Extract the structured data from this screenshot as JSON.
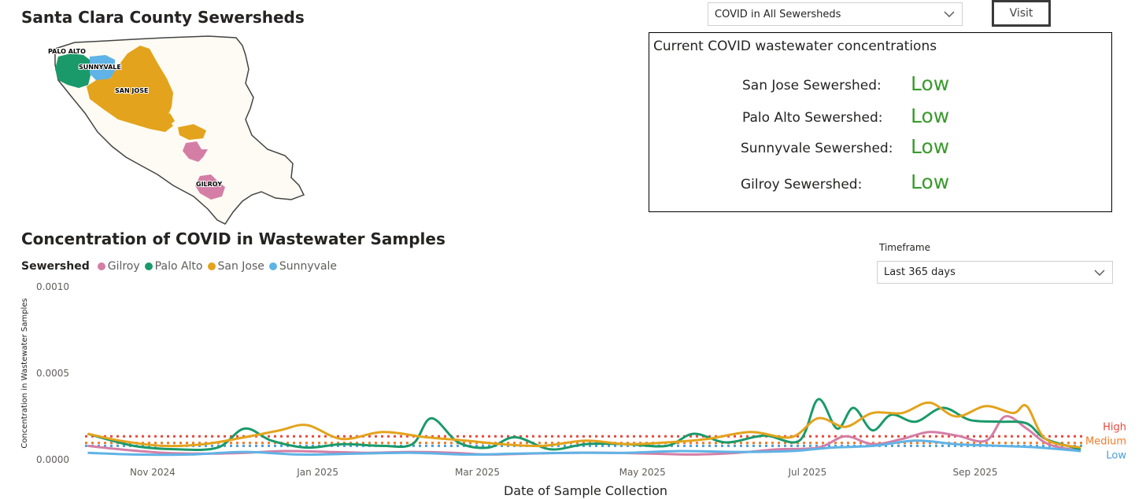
{
  "map": {
    "title": "Santa Clara County Sewersheds",
    "labels": {
      "palo_alto": "PALO ALTO",
      "sunnyvale": "SUNNYVALE",
      "san_jose": "SAN JOSE",
      "gilroy": "GILROY"
    },
    "colors": {
      "county": "#fdfbf3",
      "palo_alto": "#1a9a6a",
      "sunnyvale": "#5fb3e6",
      "san_jose": "#e3a31c",
      "gilroy": "#d47ea6"
    }
  },
  "filter": {
    "selected": "COVID in All Sewersheds"
  },
  "visit": {
    "label": "Visit"
  },
  "current": {
    "title": "Current COVID wastewater concentrations",
    "rows": [
      {
        "label": "San Jose Sewershed:",
        "value": "Low"
      },
      {
        "label": "Palo Alto Sewershed:",
        "value": "Low"
      },
      {
        "label": "Sunnyvale Sewershed:",
        "value": "Low"
      },
      {
        "label": "Gilroy Sewershed:",
        "value": "Low"
      }
    ],
    "value_color": "#3a9a2e"
  },
  "timeframe": {
    "label": "Timeframe",
    "selected": "Last 365 days"
  },
  "chart_data": {
    "type": "line",
    "title": "Concentration of COVID in Wastewater Samples",
    "xlabel": "Date of Sample Collection",
    "ylabel": "Concentration in Wastewater Samples",
    "ylim": [
      0,
      0.001
    ],
    "yticks": [
      "0.0000",
      "0.0005",
      "0.0010"
    ],
    "xlim": [
      "2024-10-07",
      "2025-10-12"
    ],
    "xticks": [
      {
        "date": "2024-11-01",
        "label": "Nov 2024"
      },
      {
        "date": "2025-01-01",
        "label": "Jan 2025"
      },
      {
        "date": "2025-03-01",
        "label": "Mar 2025"
      },
      {
        "date": "2025-05-01",
        "label": "May 2025"
      },
      {
        "date": "2025-07-01",
        "label": "Jul 2025"
      },
      {
        "date": "2025-09-01",
        "label": "Sep 2025"
      }
    ],
    "legend_title": "Sewershed",
    "legend_position": "top-left",
    "grid": false,
    "thresholds": [
      {
        "name": "High",
        "value": 0.000135,
        "color": "#e84a3c"
      },
      {
        "name": "Medium",
        "value": 9.7e-05,
        "color": "#f07d2a"
      },
      {
        "name": "Low",
        "value": 8e-05,
        "color": "#4a9fd8"
      }
    ],
    "series": [
      {
        "name": "Gilroy",
        "color": "#d47ea6",
        "points": [
          [
            "2024-10-08",
            8e-05
          ],
          [
            "2024-10-20",
            6e-05
          ],
          [
            "2024-11-05",
            4e-05
          ],
          [
            "2024-11-20",
            3.5e-05
          ],
          [
            "2024-12-05",
            4e-05
          ],
          [
            "2024-12-20",
            5e-05
          ],
          [
            "2025-01-05",
            4.5e-05
          ],
          [
            "2025-01-20",
            4e-05
          ],
          [
            "2025-02-05",
            4.5e-05
          ],
          [
            "2025-02-20",
            4e-05
          ],
          [
            "2025-03-05",
            3e-05
          ],
          [
            "2025-03-20",
            3.5e-05
          ],
          [
            "2025-04-05",
            4e-05
          ],
          [
            "2025-04-20",
            4e-05
          ],
          [
            "2025-05-05",
            3.5e-05
          ],
          [
            "2025-05-20",
            3e-05
          ],
          [
            "2025-06-05",
            4e-05
          ],
          [
            "2025-06-20",
            6e-05
          ],
          [
            "2025-07-05",
            7e-05
          ],
          [
            "2025-07-15",
            0.000135
          ],
          [
            "2025-07-25",
            9e-05
          ],
          [
            "2025-08-05",
            0.00012
          ],
          [
            "2025-08-15",
            0.00016
          ],
          [
            "2025-08-25",
            0.00014
          ],
          [
            "2025-09-05",
            0.00011
          ],
          [
            "2025-09-12",
            0.00025
          ],
          [
            "2025-09-20",
            0.00018
          ],
          [
            "2025-09-28",
            9e-05
          ],
          [
            "2025-10-10",
            5e-05
          ]
        ]
      },
      {
        "name": "Palo Alto",
        "color": "#1a9a6a",
        "points": [
          [
            "2024-10-08",
            0.00015
          ],
          [
            "2024-10-25",
            8e-05
          ],
          [
            "2024-11-10",
            6e-05
          ],
          [
            "2024-11-25",
            7e-05
          ],
          [
            "2024-12-05",
            0.00018
          ],
          [
            "2024-12-15",
            0.00011
          ],
          [
            "2024-12-28",
            7e-05
          ],
          [
            "2025-01-10",
            9e-05
          ],
          [
            "2025-01-25",
            8e-05
          ],
          [
            "2025-02-05",
            9e-05
          ],
          [
            "2025-02-12",
            0.00024
          ],
          [
            "2025-02-22",
            0.0001
          ],
          [
            "2025-03-05",
            7e-05
          ],
          [
            "2025-03-15",
            0.00013
          ],
          [
            "2025-03-28",
            6e-05
          ],
          [
            "2025-04-10",
            9e-05
          ],
          [
            "2025-04-25",
            9e-05
          ],
          [
            "2025-05-10",
            8e-05
          ],
          [
            "2025-05-20",
            0.00015
          ],
          [
            "2025-06-01",
            0.0001
          ],
          [
            "2025-06-15",
            0.00014
          ],
          [
            "2025-06-28",
            0.00011
          ],
          [
            "2025-07-05",
            0.00035
          ],
          [
            "2025-07-12",
            0.00018
          ],
          [
            "2025-07-18",
            0.0003
          ],
          [
            "2025-07-25",
            0.00017
          ],
          [
            "2025-08-01",
            0.00026
          ],
          [
            "2025-08-10",
            0.00022
          ],
          [
            "2025-08-20",
            0.0003
          ],
          [
            "2025-08-30",
            0.00023
          ],
          [
            "2025-09-10",
            0.00022
          ],
          [
            "2025-09-20",
            0.00021
          ],
          [
            "2025-09-27",
            0.00012
          ],
          [
            "2025-10-10",
            6e-05
          ]
        ]
      },
      {
        "name": "San Jose",
        "color": "#e3a31c",
        "points": [
          [
            "2024-10-08",
            0.00015
          ],
          [
            "2024-10-20",
            0.00011
          ],
          [
            "2024-11-05",
            8e-05
          ],
          [
            "2024-11-20",
            9e-05
          ],
          [
            "2024-12-05",
            0.00013
          ],
          [
            "2024-12-18",
            0.00017
          ],
          [
            "2024-12-28",
            0.0002
          ],
          [
            "2025-01-10",
            0.00012
          ],
          [
            "2025-01-25",
            0.00016
          ],
          [
            "2025-02-10",
            0.00013
          ],
          [
            "2025-02-25",
            0.00011
          ],
          [
            "2025-03-10",
            9e-05
          ],
          [
            "2025-03-25",
            8e-05
          ],
          [
            "2025-04-10",
            0.00011
          ],
          [
            "2025-04-25",
            9e-05
          ],
          [
            "2025-05-10",
            0.0001
          ],
          [
            "2025-05-25",
            0.00012
          ],
          [
            "2025-06-10",
            0.00016
          ],
          [
            "2025-06-25",
            0.00013
          ],
          [
            "2025-07-05",
            0.00024
          ],
          [
            "2025-07-15",
            0.00019
          ],
          [
            "2025-07-25",
            0.00027
          ],
          [
            "2025-08-05",
            0.00027
          ],
          [
            "2025-08-15",
            0.00033
          ],
          [
            "2025-08-25",
            0.00025
          ],
          [
            "2025-09-05",
            0.00031
          ],
          [
            "2025-09-15",
            0.00027
          ],
          [
            "2025-09-20",
            0.00031
          ],
          [
            "2025-09-27",
            0.00012
          ],
          [
            "2025-10-10",
            7e-05
          ]
        ]
      },
      {
        "name": "Sunnyvale",
        "color": "#5fb3e6",
        "points": [
          [
            "2024-10-08",
            4e-05
          ],
          [
            "2024-10-25",
            3e-05
          ],
          [
            "2024-11-15",
            3e-05
          ],
          [
            "2024-12-05",
            4.5e-05
          ],
          [
            "2024-12-25",
            3e-05
          ],
          [
            "2025-01-15",
            3.5e-05
          ],
          [
            "2025-02-05",
            4e-05
          ],
          [
            "2025-02-25",
            3e-05
          ],
          [
            "2025-03-15",
            3.5e-05
          ],
          [
            "2025-04-05",
            4e-05
          ],
          [
            "2025-04-25",
            4e-05
          ],
          [
            "2025-05-15",
            5e-05
          ],
          [
            "2025-06-05",
            4.5e-05
          ],
          [
            "2025-06-25",
            5e-05
          ],
          [
            "2025-07-10",
            7e-05
          ],
          [
            "2025-07-25",
            8e-05
          ],
          [
            "2025-08-10",
            0.00011
          ],
          [
            "2025-08-25",
            9e-05
          ],
          [
            "2025-09-10",
            8e-05
          ],
          [
            "2025-09-25",
            7e-05
          ],
          [
            "2025-10-10",
            5e-05
          ]
        ]
      }
    ]
  }
}
